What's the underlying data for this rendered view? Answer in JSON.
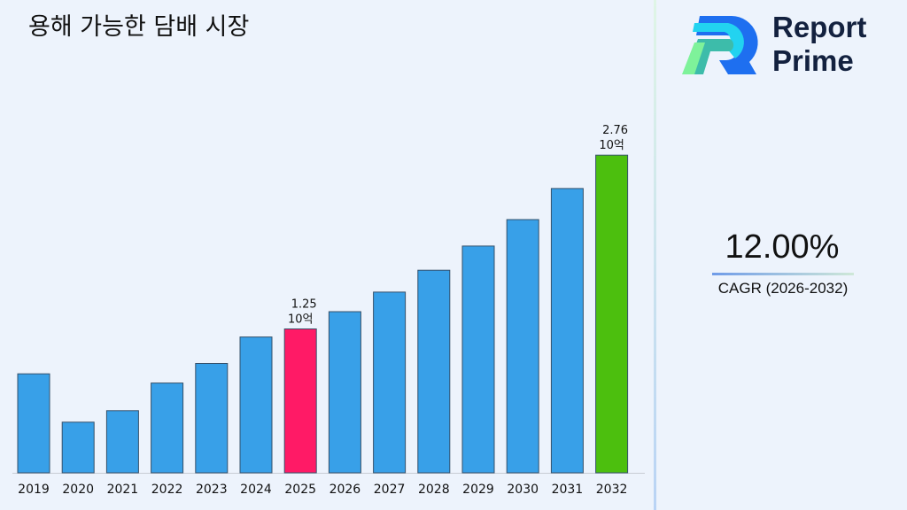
{
  "title": "용해 가능한 담배 시장",
  "logo": {
    "line1": "Report",
    "line2": "Prime"
  },
  "cagr": {
    "value": "12.00%",
    "label": "CAGR (2026-2032)"
  },
  "chart_data": {
    "type": "bar",
    "title": "용해 가능한 담배 시장",
    "categories": [
      "2019",
      "2020",
      "2021",
      "2022",
      "2023",
      "2024",
      "2025",
      "2026",
      "2027",
      "2028",
      "2029",
      "2030",
      "2031",
      "2032"
    ],
    "values": [
      0.86,
      0.44,
      0.54,
      0.78,
      0.95,
      1.18,
      1.25,
      1.4,
      1.57,
      1.76,
      1.97,
      2.2,
      2.47,
      2.76
    ],
    "ylim": [
      0,
      3
    ],
    "grid": false,
    "data_labels": {
      "6": {
        "value": "1.25",
        "unit": "10억"
      },
      "13": {
        "value": "2.76",
        "unit": "10억"
      }
    },
    "colors": {
      "default": "#38a0e8",
      "highlight_2025": "#ff1a66",
      "highlight_2032": "#4cbf0e"
    }
  }
}
